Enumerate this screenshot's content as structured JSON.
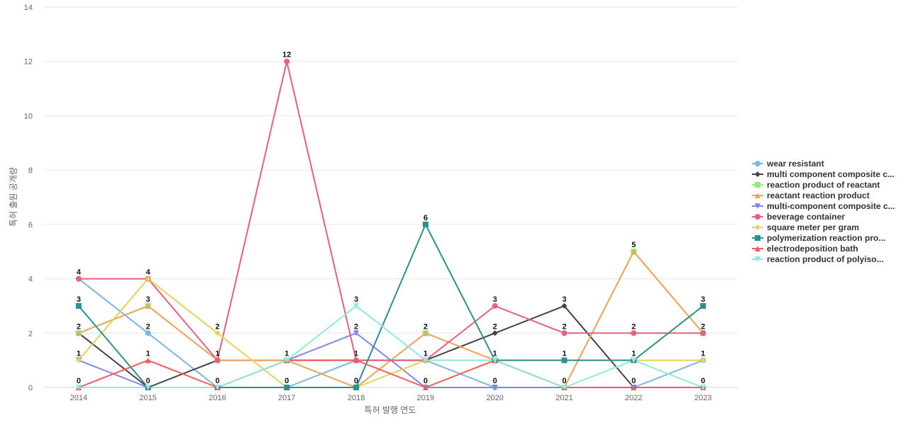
{
  "chart_data": {
    "type": "line",
    "title": "",
    "xlabel": "특허 발행 연도",
    "ylabel": "특허 출원 공개량",
    "categories": [
      "2014",
      "2015",
      "2016",
      "2017",
      "2018",
      "2019",
      "2020",
      "2021",
      "2022",
      "2023"
    ],
    "ylim": [
      0,
      14
    ],
    "yticks": [
      0,
      2,
      4,
      6,
      8,
      10,
      12,
      14
    ],
    "grid": true,
    "legend_position": "right",
    "series": [
      {
        "name": "wear resistant",
        "color": "#7cb5e6",
        "marker": "circle",
        "values": [
          4,
          2,
          0,
          0,
          1,
          1,
          0,
          0,
          0,
          1
        ]
      },
      {
        "name": "multi component composite c...",
        "color": "#434348",
        "marker": "diamond",
        "values": [
          2,
          0,
          1,
          1,
          1,
          1,
          2,
          3,
          0,
          0
        ]
      },
      {
        "name": "reaction product of reactant",
        "color": "#90ed7d",
        "marker": "square",
        "values": [
          2,
          3,
          1,
          1,
          0,
          2,
          1,
          0,
          5,
          2
        ]
      },
      {
        "name": "reactant reaction product",
        "color": "#f0a35a",
        "marker": "triangle",
        "values": [
          2,
          3,
          1,
          1,
          0,
          2,
          1,
          0,
          5,
          2
        ]
      },
      {
        "name": "multi-component composite c...",
        "color": "#8085e9",
        "marker": "triangle-down",
        "values": [
          1,
          0,
          0,
          1,
          2,
          0,
          0,
          0,
          0,
          0
        ]
      },
      {
        "name": "beverage container",
        "color": "#e8607f",
        "marker": "circle",
        "values": [
          4,
          4,
          1,
          12,
          1,
          1,
          3,
          2,
          2,
          2
        ]
      },
      {
        "name": "square meter per gram",
        "color": "#e4d354",
        "marker": "diamond",
        "values": [
          1,
          4,
          2,
          0,
          0,
          1,
          1,
          1,
          1,
          1
        ]
      },
      {
        "name": "polymerization reaction pro...",
        "color": "#2b908f",
        "marker": "square",
        "values": [
          3,
          0,
          0,
          0,
          0,
          6,
          1,
          1,
          1,
          3
        ]
      },
      {
        "name": "electrodeposition bath",
        "color": "#f45b5b",
        "marker": "triangle",
        "values": [
          0,
          1,
          0,
          1,
          1,
          0,
          1,
          0,
          0,
          0
        ]
      },
      {
        "name": "reaction product of polyiso...",
        "color": "#91e8e1",
        "marker": "triangle-down",
        "values": [
          0,
          0,
          0,
          1,
          3,
          1,
          1,
          0,
          1,
          0
        ]
      }
    ],
    "data_labels": {
      "values": [
        "4",
        "3",
        "2",
        "1",
        "0",
        "4",
        "3",
        "2",
        "1",
        "0",
        "2",
        "1",
        "0",
        "12",
        "1",
        "0",
        "3",
        "2",
        "1",
        "0",
        "6",
        "2",
        "1",
        "0",
        "3",
        "2",
        "1",
        "0",
        "3",
        "2",
        "1",
        "0",
        "5",
        "2",
        "1",
        "0",
        "3",
        "2",
        "1",
        "0"
      ],
      "columns": [
        [
          4,
          3,
          2,
          1,
          0
        ],
        [
          4,
          3,
          2,
          1,
          0
        ],
        [
          2,
          1,
          0
        ],
        [
          12,
          1,
          0
        ],
        [
          3,
          2,
          1,
          0
        ],
        [
          6,
          2,
          1,
          0
        ],
        [
          3,
          2,
          1,
          0
        ],
        [
          3,
          2,
          1,
          0
        ],
        [
          5,
          2,
          1,
          0
        ],
        [
          3,
          2,
          1,
          0
        ]
      ]
    }
  }
}
